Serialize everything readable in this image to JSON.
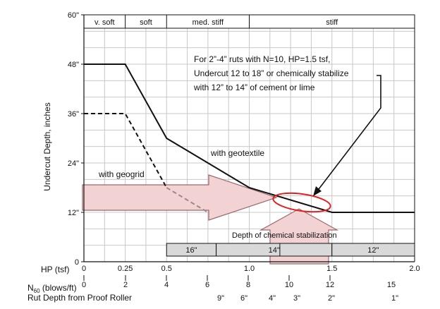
{
  "chart_data": {
    "type": "line",
    "ylabel": "Undercut Depth, inches",
    "x_axes": [
      {
        "label": "HP (tsf)",
        "ticks": [
          "0",
          "0.25",
          "0.5",
          "1.0",
          "1.5",
          "2.0"
        ],
        "tick_values": [
          0,
          0.25,
          0.5,
          1.0,
          1.5,
          2.0
        ]
      },
      {
        "label": "N60 (blows/ft)",
        "ticks": [
          "0",
          "2",
          "4",
          "6",
          "8",
          "10",
          "12",
          "15"
        ]
      },
      {
        "label": "Rut Depth from Proof Roller",
        "ticks": [
          "9\"",
          "6\"",
          "4\"",
          "3\"",
          "2\"",
          "1\""
        ]
      }
    ],
    "ylim": [
      0,
      60
    ],
    "y_ticks": [
      "0",
      "12\"",
      "24\"",
      "36\"",
      "48\"",
      "60\""
    ],
    "y_tick_values": [
      0,
      12,
      24,
      36,
      48,
      60
    ],
    "consistency_bands": [
      {
        "label": "v. soft",
        "from": 0,
        "to": 0.25
      },
      {
        "label": "soft",
        "from": 0.25,
        "to": 0.5
      },
      {
        "label": "med. stiff",
        "from": 0.5,
        "to": 1.0
      },
      {
        "label": "stiff",
        "from": 1.0,
        "to": 2.0
      }
    ],
    "series": [
      {
        "name": "with geotextile",
        "style": "solid",
        "x": [
          0,
          0.25,
          0.5,
          1.0,
          1.5,
          2.0
        ],
        "y": [
          48,
          48,
          30,
          18,
          12,
          12
        ]
      },
      {
        "name": "with geogrid",
        "style": "dashed",
        "x": [
          0,
          0.25,
          0.5,
          0.75
        ],
        "y": [
          36,
          36,
          18,
          12
        ]
      }
    ],
    "stabilization_bars": {
      "label": "Depth of chemical stabilization",
      "segments": [
        {
          "label": "16\"",
          "from": 0.5,
          "to": 0.8
        },
        {
          "label": "14\"",
          "from": 0.8,
          "to": 1.5
        },
        {
          "label": "12\"",
          "from": 1.5,
          "to": 2.0
        }
      ]
    },
    "annotation": {
      "lines": [
        "For 2”-4” ruts with N=10, HP=1.5 tsf,",
        "Undercut 12 to 18” or chemically stabilize",
        "with 12” to 14” of cement or lime"
      ]
    },
    "colors": {
      "arrow_fill": "#f2d2d3",
      "arrow_stroke": "#9a6a6c",
      "ellipse": "#e02020",
      "bar_fill": "#d9d9d9",
      "geogrid_faded": "#9a8a8a"
    }
  }
}
